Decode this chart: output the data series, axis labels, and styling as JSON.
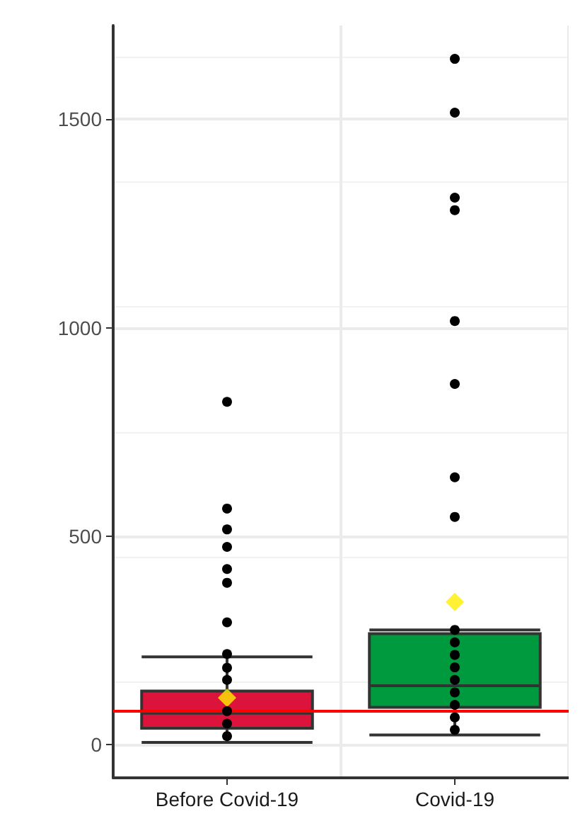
{
  "chart_data": {
    "type": "box",
    "categories": [
      "Before Covid-19",
      "Covid-19"
    ],
    "series": [
      {
        "type": "box",
        "colors": [
          "#dc143c",
          "#009a3e"
        ],
        "boxes": [
          {
            "low": 5,
            "q1": 39,
            "median": 75,
            "q3": 128,
            "high": 210,
            "mean": 112
          },
          {
            "low": 23,
            "q1": 89,
            "median": 141,
            "q3": 266,
            "high": 275,
            "mean": 342
          }
        ]
      },
      {
        "type": "scatter",
        "color": "#000000",
        "x": [
          "Before Covid-19",
          "Before Covid-19",
          "Before Covid-19",
          "Before Covid-19",
          "Before Covid-19",
          "Before Covid-19",
          "Before Covid-19",
          "Before Covid-19",
          "Before Covid-19",
          "Before Covid-19",
          "Before Covid-19",
          "Before Covid-19",
          "Before Covid-19",
          "Covid-19",
          "Covid-19",
          "Covid-19",
          "Covid-19",
          "Covid-19",
          "Covid-19",
          "Covid-19",
          "Covid-19",
          "Covid-19",
          "Covid-19",
          "Covid-19",
          "Covid-19",
          "Covid-19",
          "Covid-19",
          "Covid-19",
          "Covid-19",
          "Covid-19"
        ],
        "values": [
          822,
          566,
          516,
          474,
          421,
          388,
          293,
          217,
          184,
          155,
          80,
          50,
          20,
          1645,
          1516,
          1312,
          1282,
          1016,
          865,
          641,
          546,
          275,
          245,
          215,
          185,
          155,
          125,
          95,
          65,
          35
        ]
      }
    ],
    "ref_lines": [
      {
        "axis": "y",
        "value": 82,
        "color": "#ff0000",
        "line_style": "solid"
      }
    ],
    "ylim": [
      -80,
      1725
    ],
    "yticks": [
      0,
      500,
      1000,
      1500
    ],
    "grid": true,
    "marker": "circle"
  }
}
